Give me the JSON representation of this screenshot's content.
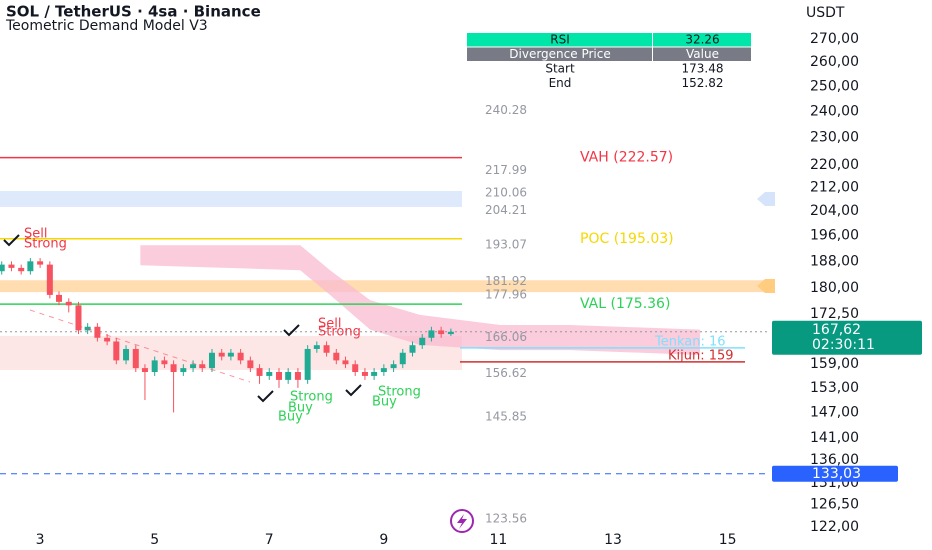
{
  "chart_data": {
    "type": "candlestick",
    "title": "SOL / TetherUS · 4sa · Binance",
    "subtitle": "Teometric Demand Model V3",
    "y_axis_title": "USDT",
    "xlim": [
      2.3,
      15.74
    ],
    "xticks": [
      3,
      5,
      7,
      9,
      11,
      13,
      15
    ],
    "ylim": [
      117.5,
      287.7
    ],
    "log_scale": true,
    "yticks": [
      {
        "value": 270,
        "label": "270,00"
      },
      {
        "value": 260,
        "label": "260,00"
      },
      {
        "value": 250,
        "label": "250,00"
      },
      {
        "value": 240,
        "label": "240,00"
      },
      {
        "value": 230,
        "label": "230,00"
      },
      {
        "value": 220,
        "label": "220,00"
      },
      {
        "value": 212,
        "label": "212,00"
      },
      {
        "value": 204,
        "label": "204,00"
      },
      {
        "value": 196,
        "label": "196,00"
      },
      {
        "value": 188,
        "label": "188,00"
      },
      {
        "value": 180,
        "label": "180,00"
      },
      {
        "value": 172.5,
        "label": "172,50"
      },
      {
        "value": 159,
        "label": "159,00"
      },
      {
        "value": 153,
        "label": "153,00"
      },
      {
        "value": 147,
        "label": "147,00"
      },
      {
        "value": 141,
        "label": "141,00"
      },
      {
        "value": 136,
        "label": "136,00"
      },
      {
        "value": 131,
        "label": "131,00"
      },
      {
        "value": 126.5,
        "label": "126,50"
      },
      {
        "value": 122,
        "label": "122,00"
      }
    ],
    "up_color": "#22ab94",
    "down_color": "#f7525f",
    "x": [
      2.33,
      2.5,
      2.67,
      2.83,
      3,
      3.17,
      3.33,
      3.5,
      3.67,
      3.83,
      4,
      4.17,
      4.33,
      4.5,
      4.67,
      4.83,
      5,
      5.17,
      5.33,
      5.5,
      5.67,
      5.83,
      6,
      6.17,
      6.33,
      6.5,
      6.67,
      6.83,
      7,
      7.17,
      7.33,
      7.5,
      7.67,
      7.83,
      8,
      8.17,
      8.33,
      8.5,
      8.67,
      8.83,
      9,
      9.17,
      9.33,
      9.5,
      9.67,
      9.83,
      10,
      10.17
    ],
    "open": [
      185,
      187,
      186,
      185,
      188,
      187,
      178,
      176,
      175,
      168,
      169,
      166,
      165,
      160,
      163,
      158,
      157,
      160,
      159,
      157,
      158,
      159,
      158,
      162,
      161,
      162,
      160,
      158,
      156,
      157,
      155,
      157,
      155,
      163,
      164,
      162,
      160,
      159,
      157,
      156,
      157,
      158,
      159,
      162,
      164,
      166,
      168,
      167
    ],
    "high": [
      188,
      188,
      187,
      189,
      189,
      188,
      179,
      177,
      176,
      170,
      170,
      167,
      166,
      164,
      164,
      159,
      161,
      161,
      160,
      159,
      160,
      160,
      163,
      163,
      163,
      163,
      161,
      159,
      158,
      158,
      158,
      158,
      164,
      165,
      165,
      163,
      161,
      160,
      158,
      158,
      159,
      160,
      163,
      165,
      167,
      169,
      169,
      168.5
    ],
    "low": [
      184,
      185,
      184,
      184,
      186,
      177,
      175,
      173,
      167,
      167,
      165,
      164,
      159,
      159,
      157,
      150,
      156,
      158,
      147,
      156,
      157,
      157,
      157,
      160,
      160,
      159,
      157,
      154,
      155,
      153,
      154,
      153,
      154,
      162,
      161,
      159,
      158,
      156,
      155,
      155,
      156,
      157,
      158,
      161,
      163,
      165,
      166,
      166.5
    ],
    "close": [
      187,
      186,
      185,
      188,
      187,
      178,
      176,
      175,
      168,
      169,
      166,
      165,
      160,
      163,
      158,
      157,
      160,
      159,
      157,
      158,
      159,
      158,
      162,
      161,
      162,
      160,
      158,
      156,
      157,
      155,
      157,
      155,
      163,
      164,
      162,
      160,
      159,
      157,
      156,
      157,
      158,
      159,
      162,
      164,
      166,
      168,
      167,
      167.62
    ],
    "zones": [
      {
        "low": 205.4,
        "high": 210.8,
        "color": "#d6e4fb"
      },
      {
        "low": 178.8,
        "high": 182.3,
        "color": "#ffd59e"
      },
      {
        "low": 157.5,
        "high": 166.5,
        "color": "#fde0e0"
      }
    ],
    "cloud": {
      "color": "#f8bbd0",
      "x": [
        4.75,
        7.54,
        8.06,
        8.76,
        9.63,
        11.03,
        12.25,
        14.52
      ],
      "upper": [
        193,
        193,
        185.3,
        176.5,
        172.3,
        169.5,
        169.5,
        168.2
      ],
      "lower": [
        186.8,
        185.3,
        178,
        168.2,
        164.1,
        162.7,
        162.7,
        161.4
      ]
    },
    "levels": [
      {
        "label": "VAH (222.57)",
        "value": 222.57,
        "color": "#f23645"
      },
      {
        "label": "POC (195.03)",
        "value": 195.03,
        "color": "#f5d800"
      },
      {
        "label": "VAL (175.36)",
        "value": 175.36,
        "color": "#2ed158"
      }
    ],
    "ichimoku": [
      {
        "label": "Tenkan: 16",
        "value": 163.3,
        "color": "#7fe0ff"
      },
      {
        "label": "Kijun: 159",
        "value": 159.6,
        "color": "#d32f2f"
      }
    ],
    "price_labels": [
      240.28,
      217.99,
      210.06,
      204.21,
      193.07,
      181.92,
      177.96,
      166.06,
      156.62,
      145.85,
      123.56
    ],
    "current_price": {
      "value": 167.62,
      "label": "167,62",
      "countdown": "02:30:11",
      "color": "#089981"
    },
    "alert_line": {
      "value": 133.03,
      "label": "133,03",
      "color": "#2962ff"
    },
    "signals": [
      {
        "text": "Sell",
        "color": "#f23645"
      },
      {
        "text": "Strong",
        "color": "#f23645"
      },
      {
        "text": "Sell",
        "color": "#f23645"
      },
      {
        "text": "Strong",
        "color": "#f23645"
      },
      {
        "text": "Strong",
        "color": "#2ed158"
      },
      {
        "text": "Buy",
        "color": "#2ed158"
      },
      {
        "text": "Buy",
        "color": "#2ed158"
      },
      {
        "text": "Strong",
        "color": "#2ed158"
      },
      {
        "text": "Buy",
        "color": "#2ed158"
      }
    ],
    "table": {
      "rows": [
        [
          "RSI",
          "32.26"
        ],
        [
          "Divergence Price",
          "Value"
        ],
        [
          "Start",
          "173.48"
        ],
        [
          "End",
          "152.82"
        ]
      ]
    }
  }
}
